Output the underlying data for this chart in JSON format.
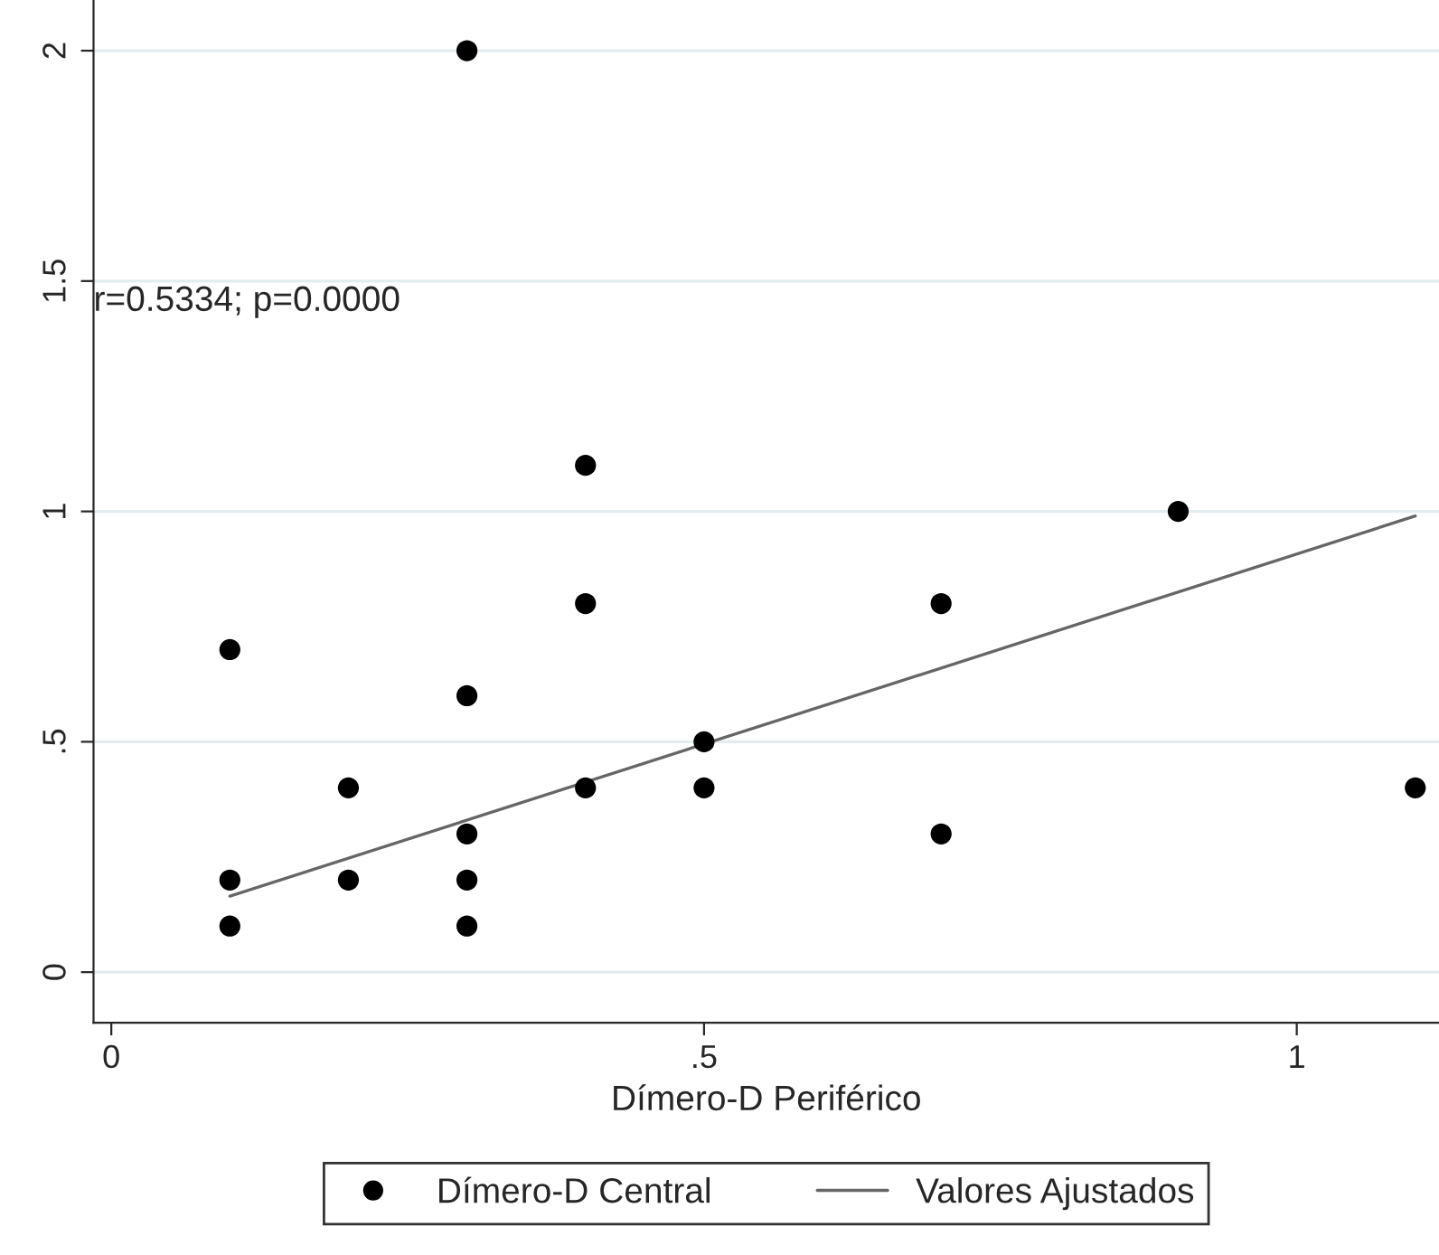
{
  "chart_data": {
    "type": "scatter",
    "xlabel": "Dímero-D Periférico",
    "xlim": [
      -0.015,
      1.12
    ],
    "ylim": [
      -0.11,
      2.11
    ],
    "xticks": [
      0,
      {
        "value": 0.5,
        "label": ".5"
      },
      1
    ],
    "yticks": [
      0,
      {
        "value": 0.5,
        "label": ".5"
      },
      1,
      {
        "value": 1.5,
        "label": "1.5"
      },
      2
    ],
    "grid": "y",
    "legend": "bottom",
    "annotations": [
      "r=0.5334; p=0.0000"
    ],
    "series": [
      {
        "name": "Dímero-D Central",
        "marker": "circle",
        "color": "#000000",
        "x": [
          0.1,
          0.1,
          0.1,
          0.2,
          0.2,
          0.3,
          0.3,
          0.3,
          0.3,
          0.3,
          0.4,
          0.4,
          0.4,
          0.5,
          0.5,
          0.7,
          0.7,
          0.9,
          1.1
        ],
        "values": [
          0.7,
          0.2,
          0.1,
          0.4,
          0.2,
          2,
          0.6,
          0.3,
          0.2,
          0.1,
          1.1,
          0.8,
          0.4,
          0.5,
          0.4,
          0.8,
          0.3,
          1.0,
          0.4
        ]
      },
      {
        "name": "Valores Ajustados",
        "type": "line",
        "color": "#666666",
        "x": [
          0.1,
          1.1
        ],
        "values": [
          0.165,
          0.99
        ]
      }
    ]
  }
}
